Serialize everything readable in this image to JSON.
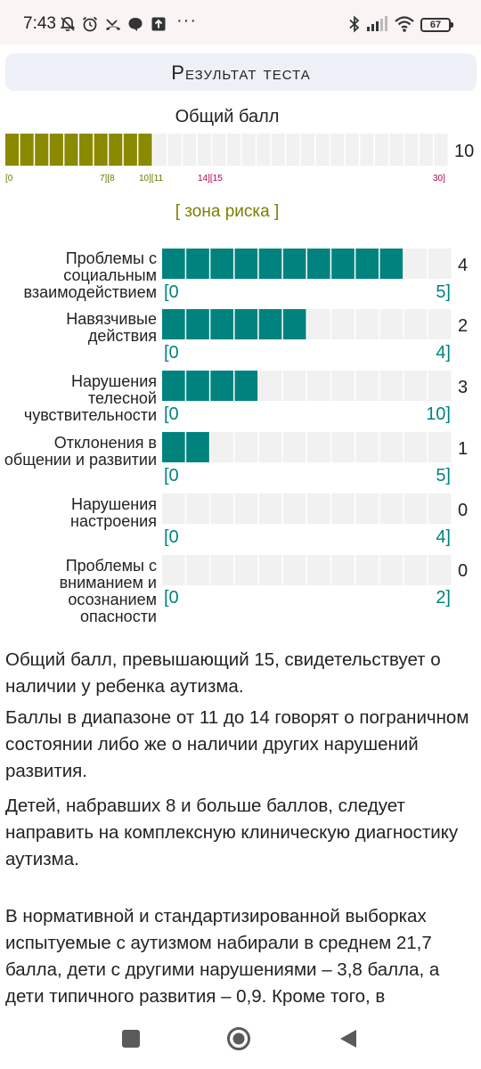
{
  "status_bar": {
    "time": "7:43",
    "battery": "67",
    "icons": [
      "muted-bell-icon",
      "alarm-icon",
      "missed-call-icon",
      "chat-icon",
      "upload-icon",
      "more-icon",
      "bluetooth-icon",
      "signal-icon",
      "wifi-icon",
      "battery-icon"
    ],
    "more": "···"
  },
  "header": {
    "title": "Результат теста"
  },
  "total": {
    "title": "Общий балл",
    "score": 10,
    "max": 30,
    "value_label": "10",
    "fill_color": "#8a8a00",
    "marks": [
      {
        "text": "[0",
        "color": "olive"
      },
      {
        "text": "7][8",
        "color": "olive"
      },
      {
        "text": "10][11",
        "color": "olive"
      },
      {
        "text": "14][15",
        "color": "red"
      },
      {
        "text": "30]",
        "color": "red"
      }
    ],
    "risk_label": "[ зона риска ]"
  },
  "categories": [
    {
      "label": "Проблемы с социальным взаимодействием",
      "value": 4,
      "value_label": "4",
      "max": 5,
      "lo": "[0",
      "hi": "5]"
    },
    {
      "label": "Навязчивые действия",
      "value": 2,
      "value_label": "2",
      "max": 4,
      "lo": "[0",
      "hi": "4]"
    },
    {
      "label": "Нарушения телесной чувствительности",
      "value": 3,
      "value_label": "3",
      "max": 10,
      "lo": "[0",
      "hi": "10]"
    },
    {
      "label": "Отклонения в общении и развитии",
      "value": 1,
      "value_label": "1",
      "max": 5,
      "lo": "[0",
      "hi": "5]"
    },
    {
      "label": "Нарушения настроения",
      "value": 0,
      "value_label": "0",
      "max": 4,
      "lo": "[0",
      "hi": "4]"
    },
    {
      "label": "Проблемы с вниманием и осознанием опасности",
      "value": 0,
      "value_label": "0",
      "max": 2,
      "lo": "[0",
      "hi": "2]"
    }
  ],
  "colors": {
    "teal": "#00837e",
    "olive": "#8a8a00",
    "empty": "#f1f1f1",
    "red": "#b5004c"
  },
  "paragraphs": [
    "Общий балл, превышающий 15, свидетельствует о наличии у ребенка аутизма.",
    "Баллы в диапазоне от 11 до 14 говорят о пограничном состоянии либо же о наличии других нарушений развития.",
    "Детей, набравших 8 и больше баллов, следует направить на комплексную клиническую диагностику аутизма.",
    "В нормативной и стандартизированной выборках испытуемые с аутизмом набирали в среднем 21,7 балла, дети с другими нарушениями – 3,8 балла, а дети типичного развития – 0,9. Кроме того, в"
  ],
  "nav": {
    "icons": [
      "recents-square-icon",
      "home-circle-icon",
      "back-triangle-icon"
    ]
  }
}
